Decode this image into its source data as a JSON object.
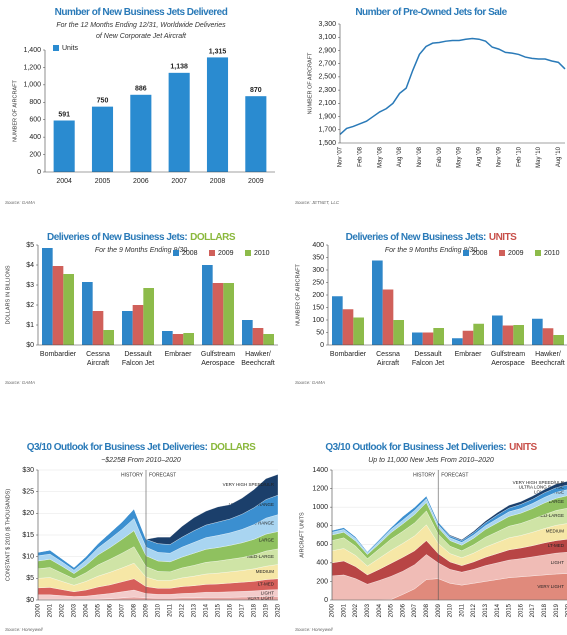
{
  "chart_data": [
    {
      "type": "bar",
      "title": "Number of New Business Jets Delivered",
      "subtitle": [
        "For the 12 Months Ending 12/31, Worldwide Deliveries",
        "of New Corporate Jet Aircraft"
      ],
      "ylabel": "NUMBER OF AIRCRAFT",
      "categories": [
        "2004",
        "2005",
        "2006",
        "2007",
        "2008",
        "2009"
      ],
      "series": [
        {
          "name": "Units",
          "color": "#2a8bd0",
          "values": [
            591,
            750,
            886,
            1138,
            1315,
            870
          ],
          "value_labels": [
            "591",
            "750",
            "886",
            "1,138",
            "1,315",
            "870"
          ]
        }
      ],
      "ylim": [
        0,
        1400
      ],
      "yticks": [
        0,
        200,
        400,
        600,
        800,
        {
          "value": 1000,
          "label": "1,000"
        },
        {
          "value": 1200,
          "label": "1,200"
        },
        {
          "value": 1400,
          "label": "1,400"
        }
      ],
      "legend": "top-left",
      "grid": false,
      "source": "Source: GAMA"
    },
    {
      "type": "line",
      "title": "Number of Pre-Owned Jets for Sale",
      "ylabel": "NUMBER OF AIRCRAFT",
      "categories": [
        "Nov '07",
        null,
        null,
        "Feb '08",
        null,
        null,
        "May '08",
        null,
        null,
        "Aug '08",
        null,
        null,
        "Nov '08",
        null,
        null,
        "Feb '09",
        null,
        null,
        "May '09",
        null,
        null,
        "Aug '09",
        null,
        null,
        "Nov '09",
        null,
        null,
        "Feb '10",
        null,
        null,
        "May '10",
        null,
        null,
        "Aug '10",
        null
      ],
      "values": [
        1630,
        1720,
        1750,
        1790,
        1830,
        1900,
        1970,
        2020,
        2100,
        2250,
        2330,
        2600,
        2840,
        2960,
        3010,
        3020,
        3040,
        3050,
        3050,
        3070,
        3080,
        3070,
        3040,
        2950,
        2920,
        2870,
        2860,
        2840,
        2800,
        2780,
        2770,
        2770,
        2740,
        2720,
        2620
      ],
      "color": "#2a7ab8",
      "ylim": [
        1500,
        3300
      ],
      "yticks": [
        {
          "value": 1500,
          "label": "1,500"
        },
        {
          "value": 1700,
          "label": "1,700"
        },
        {
          "value": 1900,
          "label": "1,900"
        },
        {
          "value": 2100,
          "label": "2,100"
        },
        {
          "value": 2300,
          "label": "2,300"
        },
        {
          "value": 2500,
          "label": "2,500"
        },
        {
          "value": 2700,
          "label": "2,700"
        },
        {
          "value": 2900,
          "label": "2,900"
        },
        {
          "value": 3100,
          "label": "3,100"
        },
        {
          "value": 3300,
          "label": "3,300"
        }
      ],
      "xtick_rotation": -90,
      "grid": false,
      "source": "Source: JETNET, LLC"
    },
    {
      "type": "bar",
      "title": "Deliveries of New Business Jets:",
      "title_highlight": "DOLLARS",
      "title_highlight_color": "#8ab83c",
      "subtitle": [
        "For the 9 Months Ending 9/30"
      ],
      "ylabel": "DOLLARS IN BILLIONS",
      "categories": [
        [
          "Bombardier"
        ],
        [
          "Cessna",
          "Aircraft"
        ],
        [
          "Dessault",
          "Falcon Jet"
        ],
        [
          "Embraer"
        ],
        [
          "Gulfstream",
          "Aerospace"
        ],
        [
          "Hawker/",
          "Beechcraft"
        ]
      ],
      "series": [
        {
          "name": "2008",
          "color": "#2e86c8",
          "values": [
            4.85,
            3.15,
            1.7,
            0.7,
            4.0,
            1.25
          ]
        },
        {
          "name": "2009",
          "color": "#d0605a",
          "values": [
            3.95,
            1.7,
            2.0,
            0.55,
            3.1,
            0.85
          ]
        },
        {
          "name": "2010",
          "color": "#8dbb4a",
          "values": [
            3.55,
            0.75,
            2.85,
            0.6,
            3.1,
            0.55
          ]
        }
      ],
      "ylim": [
        0,
        5
      ],
      "yticks": [
        {
          "value": 0,
          "label": "$0"
        },
        {
          "value": 1,
          "label": "$1"
        },
        {
          "value": 2,
          "label": "$2"
        },
        {
          "value": 3,
          "label": "$3"
        },
        {
          "value": 4,
          "label": "$4"
        },
        {
          "value": 5,
          "label": "$5"
        }
      ],
      "legend": "top-right",
      "grid": false,
      "source": "Source: GAMA"
    },
    {
      "type": "bar",
      "title": "Deliveries of New Business Jets:",
      "title_highlight": "UNITS",
      "title_highlight_color": "#c8504a",
      "subtitle": [
        "For the 9 Months Ending 9/30"
      ],
      "ylabel": "NUMBER OF AIRCRAFT",
      "categories": [
        [
          "Bombardier"
        ],
        [
          "Cessna",
          "Aircraft"
        ],
        [
          "Dessault",
          "Falcon Jet"
        ],
        [
          "Embraer"
        ],
        [
          "Gulfstream",
          "Aerospace"
        ],
        [
          "Hawker/",
          "Beechcraft"
        ]
      ],
      "series": [
        {
          "name": "2008",
          "color": "#2e86c8",
          "values": [
            195,
            338,
            50,
            27,
            118,
            105
          ]
        },
        {
          "name": "2009",
          "color": "#d0605a",
          "values": [
            143,
            222,
            50,
            57,
            78,
            67
          ]
        },
        {
          "name": "2010",
          "color": "#8dbb4a",
          "values": [
            110,
            100,
            68,
            85,
            80,
            40
          ]
        }
      ],
      "ylim": [
        0,
        400
      ],
      "yticks": [
        0,
        50,
        100,
        150,
        200,
        250,
        300,
        350,
        400
      ],
      "legend": "top-right",
      "grid": false,
      "source": "Source: GAMA"
    },
    {
      "type": "area",
      "stacked": true,
      "title": "Q3/10 Outlook for Business Jet Deliveries:",
      "title_highlight": "DOLLARS",
      "title_highlight_color": "#8ab83c",
      "subtitle": [
        "~$225B From 2010–2020"
      ],
      "ylabel": "CONSTANT $ 2010 ($ THOUSANDS)",
      "categories": [
        "2000",
        "2001",
        "2002",
        "2003",
        "2004",
        "2005",
        "2006",
        "2007",
        "2008",
        "2009",
        "2010",
        "2011",
        "2012",
        "2013",
        "2014",
        "2015",
        "2016",
        "2017",
        "2018",
        "2019",
        "2020"
      ],
      "series": [
        {
          "name": "VERY LIGHT",
          "color": "#e6a3a0",
          "values": [
            0.2,
            0.2,
            0.2,
            0.1,
            0.1,
            0.2,
            0.3,
            0.5,
            0.7,
            0.5,
            0.4,
            0.4,
            0.5,
            0.5,
            0.6,
            0.6,
            0.6,
            0.7,
            0.7,
            0.8,
            0.8
          ]
        },
        {
          "name": "LIGHT",
          "color": "#f3cccb",
          "values": [
            1.0,
            1.0,
            0.8,
            0.7,
            0.8,
            1.0,
            1.2,
            1.4,
            1.6,
            1.0,
            0.9,
            0.9,
            1.0,
            1.1,
            1.2,
            1.2,
            1.3,
            1.3,
            1.4,
            1.5,
            1.6
          ]
        },
        {
          "name": "LT-MED",
          "color": "#d65f5a",
          "values": [
            1.6,
            1.7,
            1.4,
            1.1,
            1.4,
            1.8,
            2.0,
            2.3,
            2.6,
            1.6,
            1.4,
            1.4,
            1.6,
            1.7,
            1.8,
            1.9,
            2.0,
            2.1,
            2.2,
            2.4,
            2.5
          ]
        },
        {
          "name": "MEDIUM",
          "color": "#f6e7a6",
          "values": [
            2.2,
            2.3,
            1.9,
            1.5,
            2.0,
            2.5,
            2.9,
            3.2,
            3.6,
            2.2,
            1.8,
            1.8,
            2.0,
            2.2,
            2.4,
            2.5,
            2.6,
            2.7,
            2.9,
            3.1,
            3.3
          ]
        },
        {
          "name": "MED-LARGE",
          "color": "#cfe4a6",
          "values": [
            2.2,
            2.3,
            1.9,
            1.5,
            2.0,
            2.6,
            3.0,
            3.4,
            3.8,
            2.4,
            2.1,
            2.0,
            2.3,
            2.5,
            2.7,
            2.8,
            2.9,
            3.0,
            3.2,
            3.5,
            3.6
          ]
        },
        {
          "name": "LARGE",
          "color": "#8fc15f",
          "values": [
            1.8,
            1.9,
            1.6,
            1.2,
            1.7,
            2.3,
            2.7,
            3.2,
            3.7,
            2.5,
            2.4,
            2.3,
            2.5,
            2.8,
            3.0,
            3.1,
            3.2,
            3.4,
            3.6,
            3.9,
            4.0
          ]
        },
        {
          "name": "LONG RANGE",
          "color": "#a9d5f1",
          "values": [
            1.2,
            1.2,
            1.0,
            0.8,
            1.2,
            1.6,
            2.0,
            2.3,
            2.8,
            2.0,
            2.0,
            2.0,
            2.3,
            2.5,
            2.7,
            2.8,
            2.9,
            3.1,
            3.4,
            3.7,
            3.9
          ]
        },
        {
          "name": "ULTRA LONG RANGE",
          "color": "#3b8fd0",
          "values": [
            0.8,
            0.9,
            0.7,
            0.6,
            0.8,
            1.0,
            1.4,
            1.7,
            2.2,
            1.8,
            2.0,
            2.0,
            2.3,
            2.7,
            2.9,
            3.1,
            3.2,
            3.5,
            3.9,
            4.3,
            4.5
          ]
        },
        {
          "name": "VERY HIGH SPEED/ULR",
          "color": "#1b3f6b",
          "values": [
            0,
            0,
            0,
            0,
            0,
            0,
            0,
            0,
            0,
            0,
            1.5,
            1.7,
            2.5,
            3.0,
            3.2,
            3.5,
            3.3,
            3.7,
            4.2,
            4.8,
            4.8
          ]
        }
      ],
      "ylim": [
        0,
        30
      ],
      "yticks": [
        {
          "value": 0,
          "label": "$0"
        },
        {
          "value": 5,
          "label": "$5"
        },
        {
          "value": 10,
          "label": "$10"
        },
        {
          "value": 15,
          "label": "$15"
        },
        {
          "value": 20,
          "label": "$20"
        },
        {
          "value": 25,
          "label": "$25"
        },
        {
          "value": 30,
          "label": "$30"
        }
      ],
      "history_label": "HISTORY",
      "forecast_label": "FORECAST",
      "forecast_from": "2009",
      "xtick_rotation": -90,
      "grid": true,
      "source": "Source: Honeywell"
    },
    {
      "type": "area",
      "stacked": true,
      "title": "Q3/10 Outlook for Business Jet Deliveries:",
      "title_highlight": "UNITS",
      "title_highlight_color": "#c8504a",
      "subtitle": [
        "Up to 11,000 New Jets From 2010–2020"
      ],
      "ylabel": "AIRCRAFT UNITS",
      "categories": [
        "2000",
        "2001",
        "2002",
        "2003",
        "2004",
        "2005",
        "2006",
        "2007",
        "2008",
        "2009",
        "2010",
        "2011",
        "2012",
        "2013",
        "2014",
        "2015",
        "2016",
        "2017",
        "2018",
        "2019",
        "2020"
      ],
      "series": [
        {
          "name": "VERY LIGHT",
          "color": "#e08a7c",
          "values": [
            0,
            0,
            0,
            0,
            0,
            5,
            60,
            120,
            220,
            230,
            180,
            160,
            180,
            200,
            220,
            240,
            250,
            260,
            270,
            280,
            285
          ]
        },
        {
          "name": "LIGHT",
          "color": "#f0bcb6",
          "values": [
            260,
            270,
            230,
            170,
            210,
            250,
            250,
            260,
            270,
            170,
            150,
            140,
            150,
            170,
            180,
            190,
            195,
            205,
            215,
            225,
            230
          ]
        },
        {
          "name": "LT-MED",
          "color": "#b84545",
          "values": [
            140,
            150,
            130,
            100,
            120,
            140,
            150,
            150,
            150,
            100,
            80,
            70,
            80,
            90,
            100,
            110,
            115,
            120,
            130,
            135,
            140
          ]
        },
        {
          "name": "MEDIUM",
          "color": "#f6e7a6",
          "values": [
            130,
            135,
            120,
            95,
            120,
            140,
            150,
            160,
            170,
            110,
            90,
            85,
            95,
            110,
            120,
            130,
            135,
            145,
            155,
            165,
            170
          ]
        },
        {
          "name": "MED-LARGE",
          "color": "#cfe4a6",
          "values": [
            110,
            115,
            100,
            80,
            100,
            120,
            130,
            140,
            150,
            100,
            80,
            75,
            90,
            105,
            115,
            125,
            130,
            140,
            150,
            160,
            165
          ]
        },
        {
          "name": "LARGE",
          "color": "#8fc15f",
          "values": [
            60,
            60,
            55,
            45,
            55,
            70,
            80,
            90,
            90,
            70,
            60,
            60,
            70,
            85,
            95,
            105,
            110,
            115,
            125,
            130,
            135
          ]
        },
        {
          "name": "LONG RANGE",
          "color": "#a9d5f1",
          "values": [
            30,
            30,
            28,
            18,
            28,
            35,
            40,
            45,
            40,
            30,
            30,
            30,
            35,
            40,
            45,
            50,
            50,
            55,
            60,
            65,
            65
          ]
        },
        {
          "name": "ULTRA LONG RANGE",
          "color": "#3b8fd0",
          "values": [
            20,
            20,
            17,
            12,
            17,
            20,
            40,
            35,
            30,
            30,
            20,
            20,
            25,
            30,
            40,
            40,
            45,
            45,
            50,
            50,
            50
          ]
        },
        {
          "name": "VERY HIGH SPEED/ULR",
          "color": "#1b3f6b",
          "values": [
            0,
            0,
            0,
            0,
            0,
            0,
            0,
            0,
            0,
            0,
            10,
            10,
            15,
            20,
            25,
            30,
            30,
            35,
            35,
            40,
            40
          ]
        }
      ],
      "ylim": [
        0,
        1400
      ],
      "yticks": [
        0,
        200,
        400,
        600,
        800,
        1000,
        1200,
        1400
      ],
      "history_label": "HISTORY",
      "forecast_label": "FORECAST",
      "forecast_from": "2009",
      "xtick_rotation": -90,
      "grid": true,
      "source": "Source: Honeywell"
    }
  ]
}
